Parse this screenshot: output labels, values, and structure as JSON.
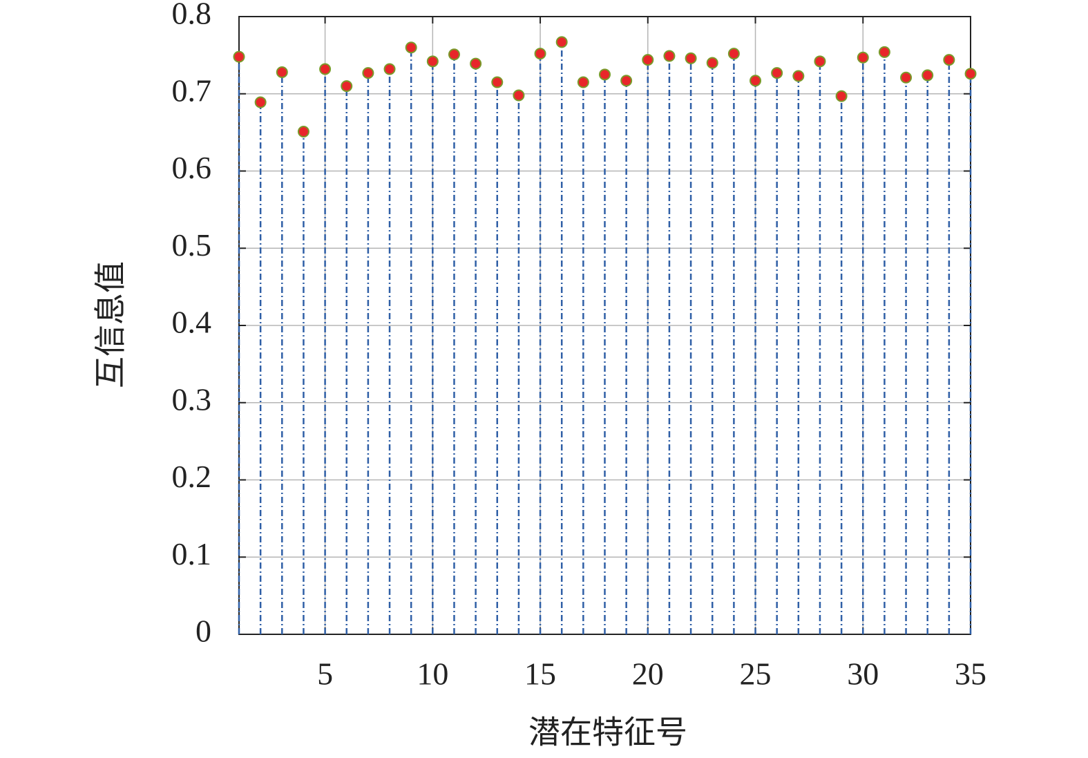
{
  "chart_data": {
    "type": "stem",
    "xlabel": "潜在特征号",
    "ylabel": "互信息值",
    "x": [
      1,
      2,
      3,
      4,
      5,
      6,
      7,
      8,
      9,
      10,
      11,
      12,
      13,
      14,
      15,
      16,
      17,
      18,
      19,
      20,
      21,
      22,
      23,
      24,
      25,
      26,
      27,
      28,
      29,
      30,
      31,
      32,
      33,
      34,
      35
    ],
    "values": [
      0.748,
      0.689,
      0.728,
      0.651,
      0.732,
      0.71,
      0.727,
      0.732,
      0.76,
      0.742,
      0.751,
      0.739,
      0.715,
      0.698,
      0.752,
      0.767,
      0.715,
      0.725,
      0.717,
      0.744,
      0.749,
      0.746,
      0.74,
      0.752,
      0.717,
      0.727,
      0.723,
      0.742,
      0.697,
      0.747,
      0.754,
      0.721,
      0.724,
      0.744,
      0.726
    ],
    "stem_color": "#2f5fa6",
    "marker_color": "#e8262a",
    "marker_edge_color": "#7a9a2a",
    "xlim": [
      1,
      35
    ],
    "xticks": [
      5,
      10,
      15,
      20,
      25,
      30,
      35
    ],
    "ylim": [
      0,
      0.8
    ],
    "yticks": [
      0,
      0.1,
      0.2,
      0.3,
      0.4,
      0.5,
      0.6,
      0.7,
      0.8
    ],
    "grid": true
  }
}
